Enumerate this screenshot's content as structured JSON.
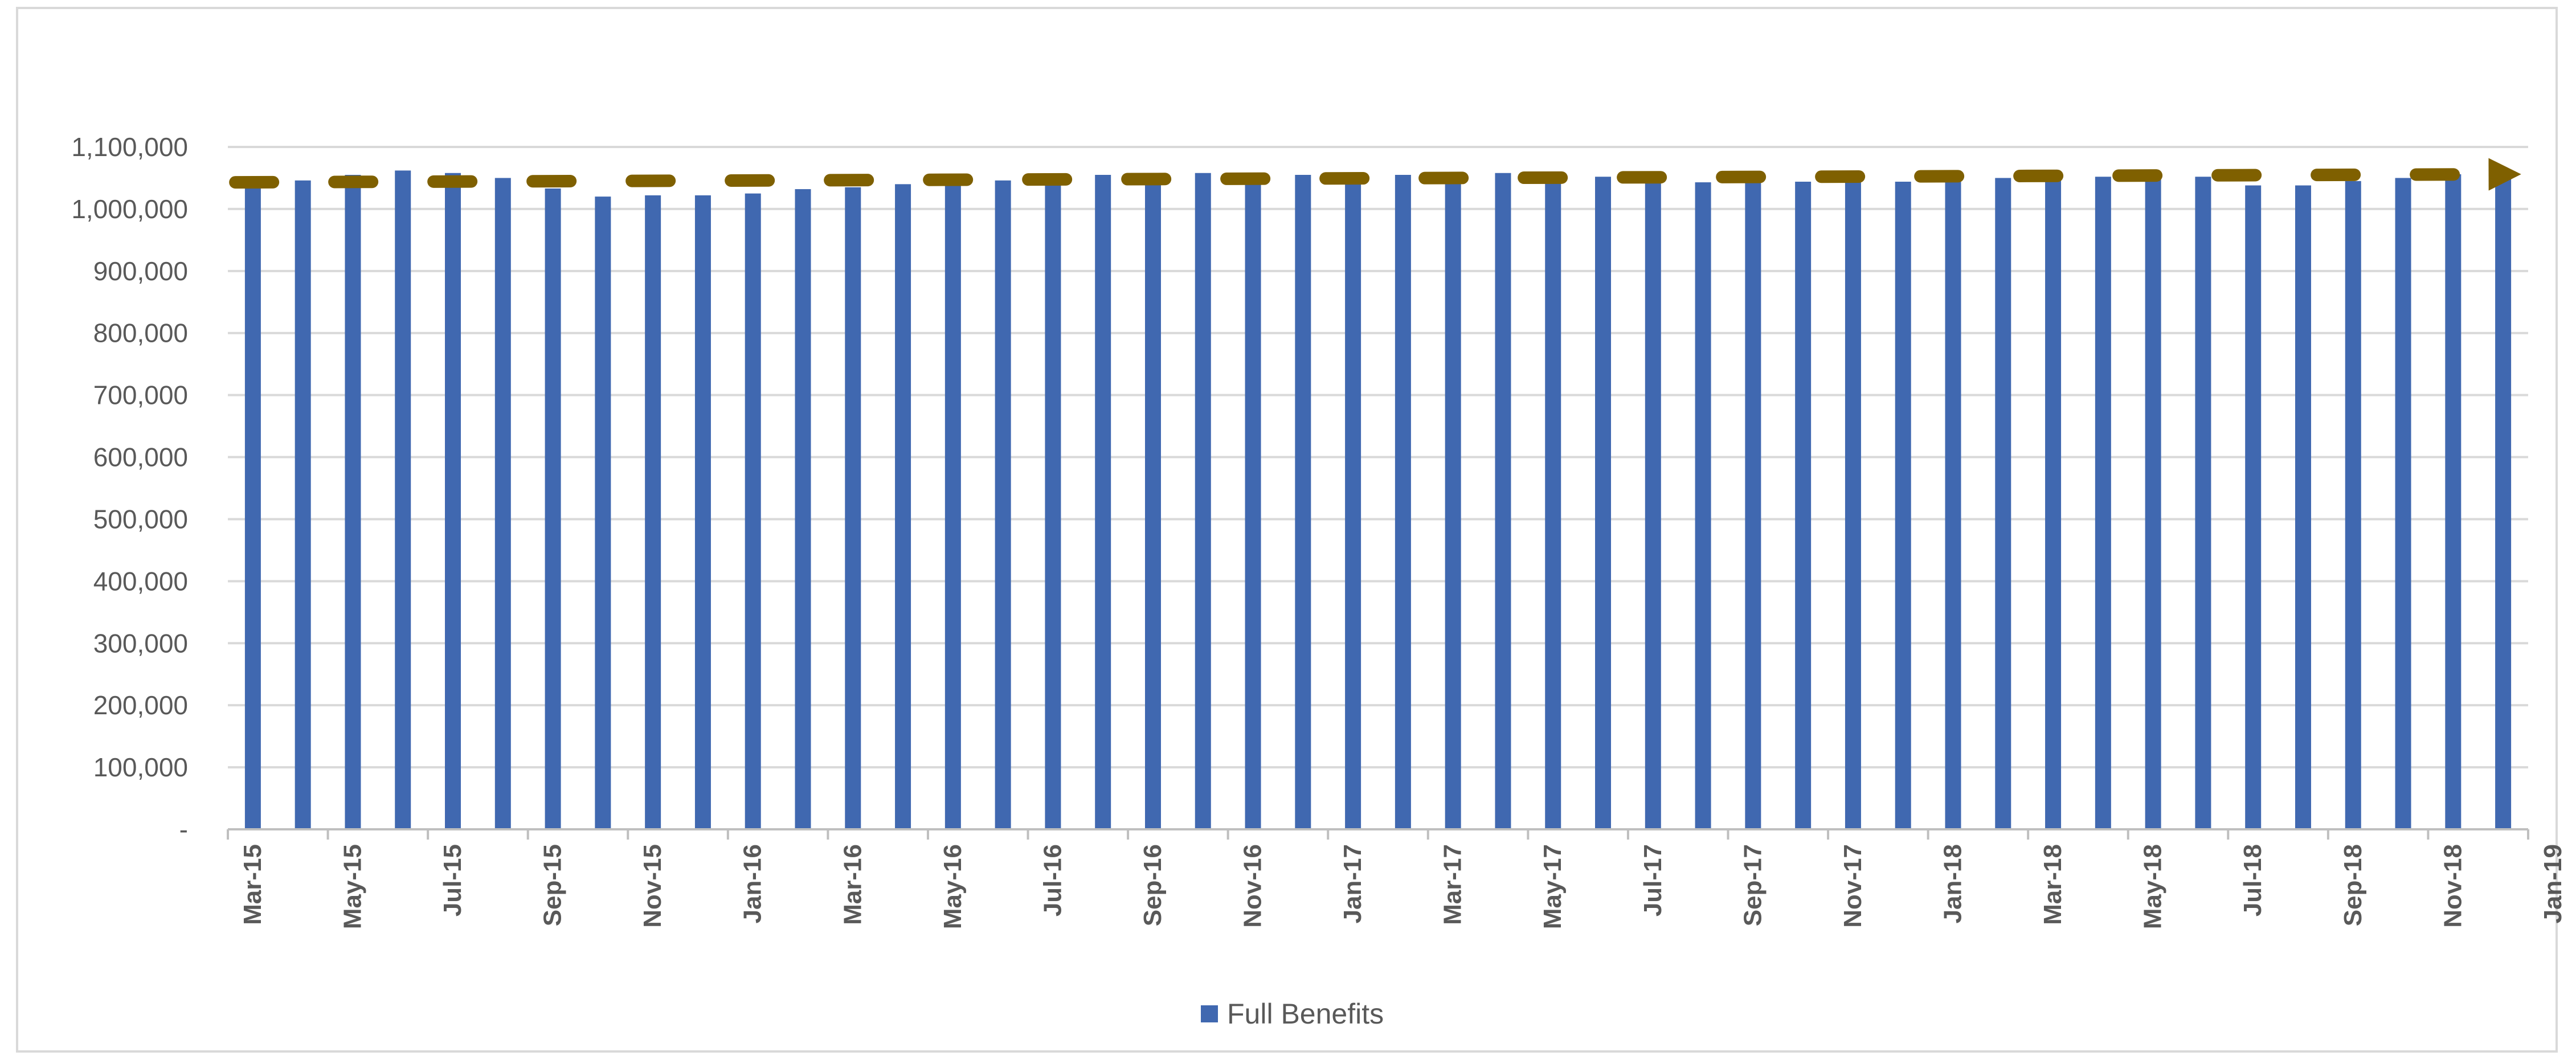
{
  "chart_data": {
    "type": "bar",
    "title": "",
    "xlabel": "",
    "ylabel": "",
    "ylim": [
      0,
      1100000
    ],
    "yticks": [
      0,
      100000,
      200000,
      300000,
      400000,
      500000,
      600000,
      700000,
      800000,
      900000,
      1000000,
      1100000
    ],
    "ytick_labels": [
      "-",
      "100,000",
      "200,000",
      "300,000",
      "400,000",
      "500,000",
      "600,000",
      "700,000",
      "800,000",
      "900,000",
      "1,000,000",
      "1,100,000"
    ],
    "xtick_labels": [
      "Mar-15",
      "May-15",
      "Jul-15",
      "Sep-15",
      "Nov-15",
      "Jan-16",
      "Mar-16",
      "May-16",
      "Jul-16",
      "Sep-16",
      "Nov-16",
      "Jan-17",
      "Mar-17",
      "May-17",
      "Jul-17",
      "Sep-17",
      "Nov-17",
      "Jan-18",
      "Mar-18",
      "May-18",
      "Jul-18",
      "Sep-18",
      "Nov-18",
      "Jan-19"
    ],
    "categories": [
      "Mar-15",
      "Apr-15",
      "May-15",
      "Jun-15",
      "Jul-15",
      "Aug-15",
      "Sep-15",
      "Oct-15",
      "Nov-15",
      "Dec-15",
      "Jan-16",
      "Feb-16",
      "Mar-16",
      "Apr-16",
      "May-16",
      "Jun-16",
      "Jul-16",
      "Aug-16",
      "Sep-16",
      "Oct-16",
      "Nov-16",
      "Dec-16",
      "Jan-17",
      "Feb-17",
      "Mar-17",
      "Apr-17",
      "May-17",
      "Jun-17",
      "Jul-17",
      "Aug-17",
      "Sep-17",
      "Oct-17",
      "Nov-17",
      "Dec-17",
      "Jan-18",
      "Feb-18",
      "Mar-18",
      "Apr-18",
      "May-18",
      "Jun-18",
      "Jul-18",
      "Aug-18",
      "Sep-18",
      "Oct-18",
      "Nov-18",
      "Dec-18"
    ],
    "series": [
      {
        "name": "Full Benefits",
        "color": "#4068b0",
        "values": [
          1045000,
          1046000,
          1055000,
          1062000,
          1058000,
          1050000,
          1033000,
          1020000,
          1022000,
          1022000,
          1025000,
          1032000,
          1035000,
          1040000,
          1044000,
          1046000,
          1050000,
          1055000,
          1058000,
          1058000,
          1057000,
          1055000,
          1055000,
          1055000,
          1056000,
          1058000,
          1058000,
          1052000,
          1048000,
          1043000,
          1048000,
          1044000,
          1046000,
          1044000,
          1050000,
          1050000,
          1050000,
          1052000,
          1052000,
          1052000,
          1038000,
          1038000,
          1045000,
          1050000,
          1056000,
          1058000
        ]
      }
    ],
    "trendline": {
      "type": "linear",
      "style": "dashed-arrow",
      "color": "#7f6000",
      "start": 1043000,
      "end": 1056000
    },
    "grid": true,
    "legend": "bottom"
  }
}
